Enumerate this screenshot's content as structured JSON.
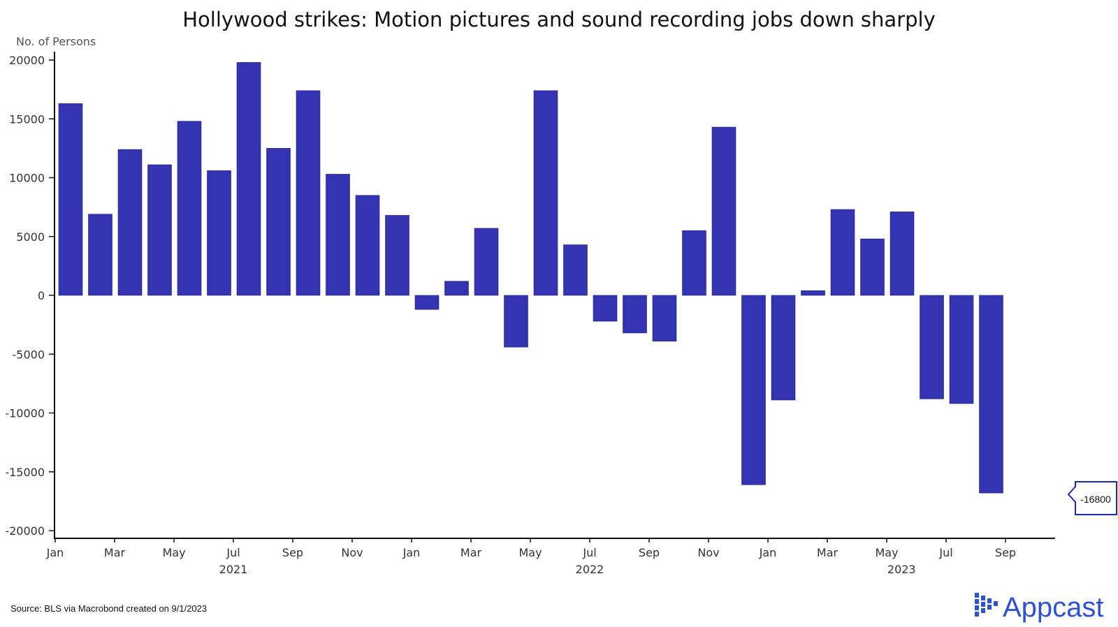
{
  "chart_data": {
    "type": "bar",
    "title": "Hollywood strikes: Motion pictures and sound recording jobs down sharply",
    "ylabel": "No. of Persons",
    "xlabel": "",
    "ylim": [
      -20000,
      20000
    ],
    "yticks": [
      20000,
      15000,
      10000,
      5000,
      0,
      -5000,
      -10000,
      -15000,
      -20000
    ],
    "x_month_ticks": [
      {
        "index": 0,
        "label": "Jan"
      },
      {
        "index": 2,
        "label": "Mar"
      },
      {
        "index": 4,
        "label": "May"
      },
      {
        "index": 6,
        "label": "Jul"
      },
      {
        "index": 8,
        "label": "Sep"
      },
      {
        "index": 10,
        "label": "Nov"
      },
      {
        "index": 12,
        "label": "Jan"
      },
      {
        "index": 14,
        "label": "Mar"
      },
      {
        "index": 16,
        "label": "May"
      },
      {
        "index": 18,
        "label": "Jul"
      },
      {
        "index": 20,
        "label": "Sep"
      },
      {
        "index": 22,
        "label": "Nov"
      },
      {
        "index": 24,
        "label": "Jan"
      },
      {
        "index": 26,
        "label": "Mar"
      },
      {
        "index": 28,
        "label": "May"
      },
      {
        "index": 30,
        "label": "Jul"
      },
      {
        "index": 32,
        "label": "Sep"
      }
    ],
    "x_year_ticks": [
      {
        "index": 6,
        "label": "2021"
      },
      {
        "index": 18,
        "label": "2022"
      },
      {
        "index": 28.5,
        "label": "2023"
      }
    ],
    "categories": [
      "2021-01",
      "2021-02",
      "2021-03",
      "2021-04",
      "2021-05",
      "2021-06",
      "2021-07",
      "2021-08",
      "2021-09",
      "2021-10",
      "2021-11",
      "2021-12",
      "2022-01",
      "2022-02",
      "2022-03",
      "2022-04",
      "2022-05",
      "2022-06",
      "2022-07",
      "2022-08",
      "2022-09",
      "2022-10",
      "2022-11",
      "2022-12",
      "2023-01",
      "2023-02",
      "2023-03",
      "2023-04",
      "2023-05",
      "2023-06",
      "2023-07",
      "2023-08"
    ],
    "values": [
      16300,
      6900,
      12400,
      11100,
      14800,
      10600,
      19800,
      12500,
      17400,
      10300,
      8500,
      6800,
      -1200,
      1200,
      5700,
      -4400,
      17400,
      4300,
      -2200,
      -3200,
      -3900,
      5500,
      14300,
      -16100,
      -8900,
      400,
      7300,
      4800,
      7100,
      -8800,
      -9200,
      -16800
    ],
    "bar_color": "#3333b3",
    "grid": false,
    "last_value_callout": "-16800",
    "source": "Source: BLS via Macrobond created on 9/1/2023"
  },
  "branding": {
    "logo_text": "Appcast",
    "logo_color": "#2e52d1"
  }
}
